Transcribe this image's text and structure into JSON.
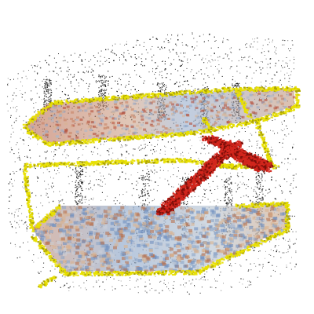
{
  "image": {
    "subject": "point-cloud",
    "colors": {
      "background": "#ffffff",
      "points_dark": "#111111",
      "edge_yellow": "#e8e000",
      "edge_yellow_dark": "#a8a000",
      "floor_red": "#b2452f",
      "floor_tan": "#d9b28f",
      "floor_blue": "#8ea6c8",
      "floor_blue_deep": "#6f8fbf",
      "stair_red": "#d2261c",
      "stair_dark": "#7a0f0a"
    }
  }
}
